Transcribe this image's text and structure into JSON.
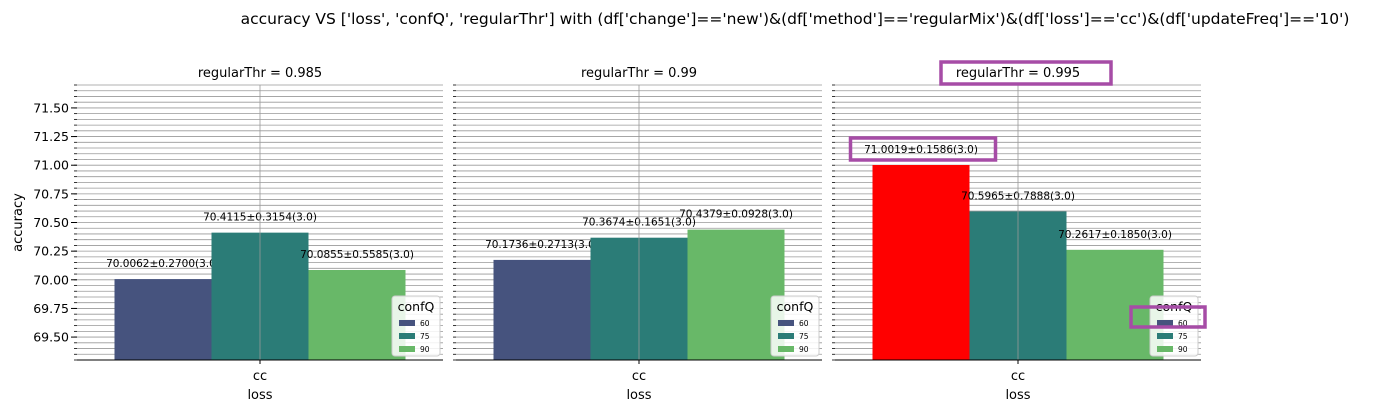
{
  "figure": {
    "suptitle": "accuracy VS ['loss', 'confQ', 'regularThr'] with (df['change']=='new')&(df['method']=='regularMix')&(df['loss']=='cc')&(df['updateFreq']=='10')"
  },
  "colors": {
    "confQ_60": "#46537e",
    "confQ_75": "#2b7c77",
    "confQ_90": "#68b868",
    "highlight_bar": "#ff0000",
    "annotation_box": "#a64ca6",
    "grid": "#999999"
  },
  "chart_data": [
    {
      "type": "bar",
      "title": "regularThr = 0.985",
      "xlabel": "loss",
      "ylabel": "accuracy",
      "categories": [
        "cc"
      ],
      "ylim": [
        69.3,
        71.7
      ],
      "yticks": [
        "69.50",
        "69.75",
        "70.00",
        "70.25",
        "70.50",
        "70.75",
        "71.00",
        "71.25",
        "71.50"
      ],
      "legend": {
        "title": "confQ",
        "entries": [
          "60",
          "75",
          "90"
        ],
        "position": "lower-right"
      },
      "grid": true,
      "series": [
        {
          "name": "60",
          "values": [
            70.0062
          ],
          "label": "70.0062±0.2700(3.0)"
        },
        {
          "name": "75",
          "values": [
            70.4115
          ],
          "label": "70.4115±0.3154(3.0)"
        },
        {
          "name": "90",
          "values": [
            70.0855
          ],
          "label": "70.0855±0.5585(3.0)"
        }
      ]
    },
    {
      "type": "bar",
      "title": "regularThr = 0.99",
      "xlabel": "loss",
      "ylabel": "",
      "categories": [
        "cc"
      ],
      "ylim": [
        69.3,
        71.7
      ],
      "legend": {
        "title": "confQ",
        "entries": [
          "60",
          "75",
          "90"
        ],
        "position": "lower-right"
      },
      "grid": true,
      "series": [
        {
          "name": "60",
          "values": [
            70.1736
          ],
          "label": "70.1736±0.2713(3.0)"
        },
        {
          "name": "75",
          "values": [
            70.3674
          ],
          "label": "70.3674±0.1651(3.0)"
        },
        {
          "name": "90",
          "values": [
            70.4379
          ],
          "label": "70.4379±0.0928(3.0)"
        }
      ]
    },
    {
      "type": "bar",
      "title": "regularThr = 0.995",
      "xlabel": "loss",
      "ylabel": "",
      "categories": [
        "cc"
      ],
      "ylim": [
        69.3,
        71.7
      ],
      "legend": {
        "title": "confQ",
        "entries": [
          "60",
          "75",
          "90"
        ],
        "position": "lower-right"
      },
      "grid": true,
      "highlight": {
        "bar": "60",
        "title_boxed": true,
        "label_boxed": true,
        "legend_first_entry_boxed": true
      },
      "series": [
        {
          "name": "60",
          "values": [
            71.0019
          ],
          "label": "71.0019±0.1586(3.0)"
        },
        {
          "name": "75",
          "values": [
            70.5965
          ],
          "label": "70.5965±0.7888(3.0)"
        },
        {
          "name": "90",
          "values": [
            70.2617
          ],
          "label": "70.2617±0.1850(3.0)"
        }
      ]
    }
  ]
}
